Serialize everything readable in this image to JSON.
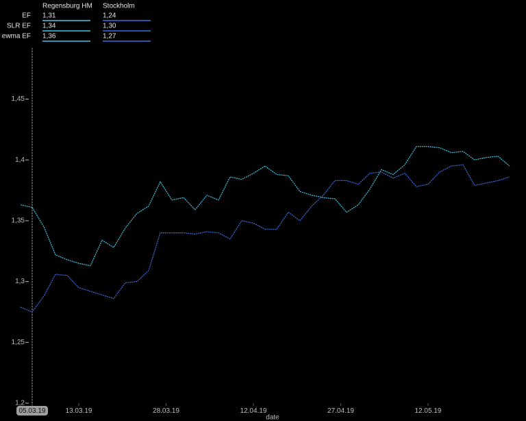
{
  "chart_data": {
    "type": "line",
    "x_label": "date",
    "summary": {
      "columns": [
        "Regensburg HM",
        "Stockholm"
      ],
      "rows": [
        {
          "label": "EF",
          "values": [
            "1,31",
            "1,24"
          ]
        },
        {
          "label": "SLR EF",
          "values": [
            "1,34",
            "1,30"
          ]
        },
        {
          "label": "ewma EF",
          "values": [
            "1,36",
            "1,27"
          ]
        }
      ]
    },
    "x": [
      "03.03.19",
      "05.03.19",
      "07.03.19",
      "09.03.19",
      "11.03.19",
      "13.03.19",
      "15.03.19",
      "17.03.19",
      "19.03.19",
      "21.03.19",
      "23.03.19",
      "25.03.19",
      "27.03.19",
      "29.03.19",
      "31.03.19",
      "02.04.19",
      "04.04.19",
      "06.04.19",
      "08.04.19",
      "10.04.19",
      "12.04.19",
      "14.04.19",
      "16.04.19",
      "18.04.19",
      "20.04.19",
      "22.04.19",
      "24.04.19",
      "26.04.19",
      "28.04.19",
      "30.04.19",
      "02.05.19",
      "04.05.19",
      "06.05.19",
      "08.05.19",
      "10.05.19",
      "12.05.19",
      "14.05.19",
      "16.05.19",
      "18.05.19",
      "20.05.19",
      "22.05.19",
      "24.05.19",
      "26.05.19"
    ],
    "series": [
      {
        "name": "Regensburg HM",
        "color": "#3ec8e8",
        "values": [
          1.363,
          1.361,
          1.345,
          1.322,
          1.318,
          1.315,
          1.313,
          1.334,
          1.328,
          1.344,
          1.356,
          1.362,
          1.382,
          1.367,
          1.369,
          1.359,
          1.371,
          1.367,
          1.386,
          1.384,
          1.389,
          1.395,
          1.388,
          1.387,
          1.374,
          1.371,
          1.369,
          1.368,
          1.357,
          1.363,
          1.376,
          1.392,
          1.388,
          1.396,
          1.411,
          1.411,
          1.41,
          1.406,
          1.407,
          1.4,
          1.402,
          1.403,
          1.395
        ]
      },
      {
        "name": "Stockholm",
        "color": "#3a6fe0",
        "values": [
          1.279,
          1.275,
          1.288,
          1.306,
          1.305,
          1.295,
          1.292,
          1.289,
          1.286,
          1.299,
          1.3,
          1.309,
          1.34,
          1.34,
          1.34,
          1.339,
          1.341,
          1.34,
          1.335,
          1.35,
          1.348,
          1.343,
          1.343,
          1.357,
          1.35,
          1.362,
          1.371,
          1.383,
          1.383,
          1.38,
          1.389,
          1.39,
          1.385,
          1.389,
          1.378,
          1.38,
          1.39,
          1.395,
          1.396,
          1.379,
          1.381,
          1.383,
          1.386
        ]
      }
    ],
    "xlim": [
      "05.03.19",
      "28.05.19"
    ],
    "xticks": [
      "05.03.19",
      "13.03.19",
      "28.03.19",
      "12.04.19",
      "27.04.19",
      "12.05.19"
    ],
    "ylim": [
      1.2,
      1.492
    ],
    "yticks": [
      {
        "value": 1.2,
        "label": "1,2"
      },
      {
        "value": 1.25,
        "label": "1,25"
      },
      {
        "value": 1.3,
        "label": "1,3"
      },
      {
        "value": 1.35,
        "label": "1,35"
      },
      {
        "value": 1.4,
        "label": "1,4"
      },
      {
        "value": 1.45,
        "label": "1,45"
      }
    ]
  }
}
